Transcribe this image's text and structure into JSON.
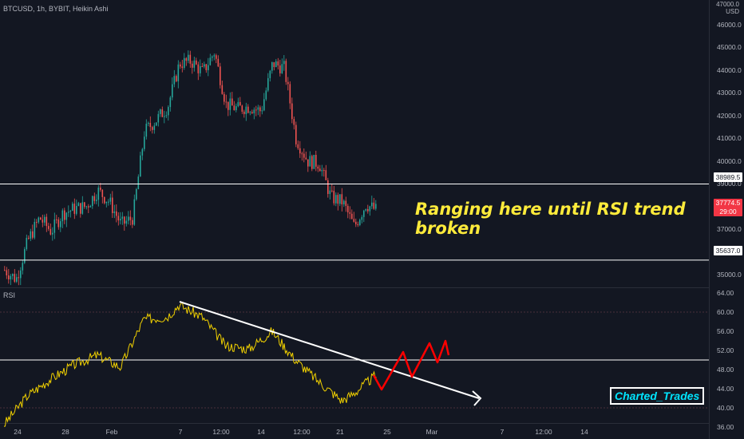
{
  "header": {
    "symbol": "BTCUSD, 1h, BYBIT, Heikin Ashi"
  },
  "price_axis": {
    "unit": "USD",
    "top_partial": "47000.0",
    "ticks": [
      "46000.0",
      "45000.0",
      "44000.0",
      "43000.0",
      "42000.0",
      "41000.0",
      "40000.0",
      "39000.0",
      "38000.0",
      "37000.0",
      "36000.0",
      "35000.0"
    ]
  },
  "levels": {
    "upper": "38989.5",
    "lower": "35637.0"
  },
  "last_price": {
    "value": "37774.5",
    "countdown": "29:00"
  },
  "rsi": {
    "label": "RSI",
    "ticks": [
      "64.00",
      "60.00",
      "56.00",
      "52.00",
      "48.00",
      "44.00",
      "40.00",
      "36.00"
    ]
  },
  "time_axis": [
    "24",
    "28",
    "Feb",
    "7",
    "12:00",
    "14",
    "12:00",
    "21",
    "25",
    "Mar",
    "7",
    "12:00",
    "14"
  ],
  "annotation": "Ranging here until RSI trend broken",
  "watermark": "Charted_Trades",
  "colors": {
    "bg": "#131722",
    "up": "#26a69a",
    "down": "#ef5350",
    "rsi": "#f0d000",
    "annotation": "#ffeb3b",
    "projection": "#ff0000",
    "watermark": "#00e5ff"
  },
  "chart_data": [
    {
      "type": "candlestick",
      "title": "BTCUSD, 1h, BYBIT, Heikin Ashi",
      "ylabel": "USD",
      "ylim": [
        34500,
        47000
      ],
      "key_points": [
        {
          "x": "Jan 23",
          "y": 35200
        },
        {
          "x": "Jan 24",
          "y": 34800
        },
        {
          "x": "Jan 25",
          "y": 36500
        },
        {
          "x": "Jan 26",
          "y": 37500
        },
        {
          "x": "Jan 27",
          "y": 36900
        },
        {
          "x": "Jan 28",
          "y": 37700
        },
        {
          "x": "Jan 29",
          "y": 37900
        },
        {
          "x": "Jan 30",
          "y": 38000
        },
        {
          "x": "Jan 31",
          "y": 38700
        },
        {
          "x": "Feb 1",
          "y": 38200
        },
        {
          "x": "Feb 2",
          "y": 37200
        },
        {
          "x": "Feb 3",
          "y": 37500
        },
        {
          "x": "Feb 4",
          "y": 41300
        },
        {
          "x": "Feb 5",
          "y": 41800
        },
        {
          "x": "Feb 6",
          "y": 42400
        },
        {
          "x": "Feb 7",
          "y": 44300
        },
        {
          "x": "Feb 8",
          "y": 44400
        },
        {
          "x": "Feb 9",
          "y": 43900
        },
        {
          "x": "Feb 10",
          "y": 44800
        },
        {
          "x": "Feb 11",
          "y": 42500
        },
        {
          "x": "Feb 12",
          "y": 42300
        },
        {
          "x": "Feb 13",
          "y": 42400
        },
        {
          "x": "Feb 14",
          "y": 42200
        },
        {
          "x": "Feb 15",
          "y": 44300
        },
        {
          "x": "Feb 16",
          "y": 44100
        },
        {
          "x": "Feb 17",
          "y": 41000
        },
        {
          "x": "Feb 18",
          "y": 40000
        },
        {
          "x": "Feb 19",
          "y": 39900
        },
        {
          "x": "Feb 20",
          "y": 38400
        },
        {
          "x": "Feb 21",
          "y": 38200
        },
        {
          "x": "Feb 22",
          "y": 37100
        },
        {
          "x": "Feb 23",
          "y": 38100
        },
        {
          "x": "Feb 24",
          "y": 37800
        }
      ],
      "horizontal_levels": [
        38989.5,
        35637.0
      ],
      "last_price": 37774.5
    },
    {
      "type": "line",
      "title": "RSI",
      "ylim": [
        35,
        65
      ],
      "series": [
        {
          "values_by_date": [
            {
              "x": "Jan 23",
              "y": 36.5
            },
            {
              "x": "Jan 25",
              "y": 42.5
            },
            {
              "x": "Jan 27",
              "y": 46
            },
            {
              "x": "Jan 29",
              "y": 49
            },
            {
              "x": "Jan 31",
              "y": 51
            },
            {
              "x": "Feb 2",
              "y": 48.5
            },
            {
              "x": "Feb 4",
              "y": 58.5
            },
            {
              "x": "Feb 6",
              "y": 59
            },
            {
              "x": "Feb 7",
              "y": 61.5
            },
            {
              "x": "Feb 9",
              "y": 59
            },
            {
              "x": "Feb 11",
              "y": 53
            },
            {
              "x": "Feb 13",
              "y": 52.3
            },
            {
              "x": "Feb 15",
              "y": 56
            },
            {
              "x": "Feb 17",
              "y": 50
            },
            {
              "x": "Feb 19",
              "y": 45.5
            },
            {
              "x": "Feb 21",
              "y": 41.5
            },
            {
              "x": "Feb 22",
              "y": 43
            },
            {
              "x": "Feb 24",
              "y": 47
            }
          ]
        }
      ],
      "horizontal_levels": [
        50
      ]
    }
  ]
}
